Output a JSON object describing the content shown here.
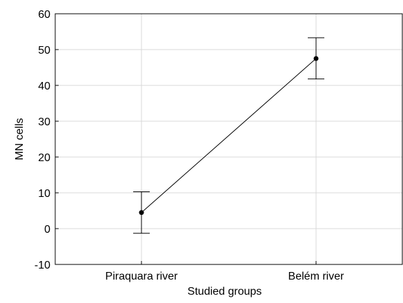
{
  "chart_data": {
    "type": "line",
    "title": "",
    "xlabel": "Studied groups",
    "ylabel": "MN cells",
    "categories": [
      "Piraquara river",
      "Belém river"
    ],
    "series": [
      {
        "values": [
          4.5,
          47.5
        ],
        "error_low": [
          -1.3,
          41.8
        ],
        "error_high": [
          10.3,
          53.3
        ]
      }
    ],
    "ylim": [
      -10,
      60
    ],
    "yticks": [
      "-10",
      "0",
      "10",
      "20",
      "30",
      "40",
      "50",
      "60"
    ],
    "grid": true,
    "colors": {
      "line": "#000000",
      "grid": "#d9d9d9",
      "axis": "#000000"
    }
  }
}
